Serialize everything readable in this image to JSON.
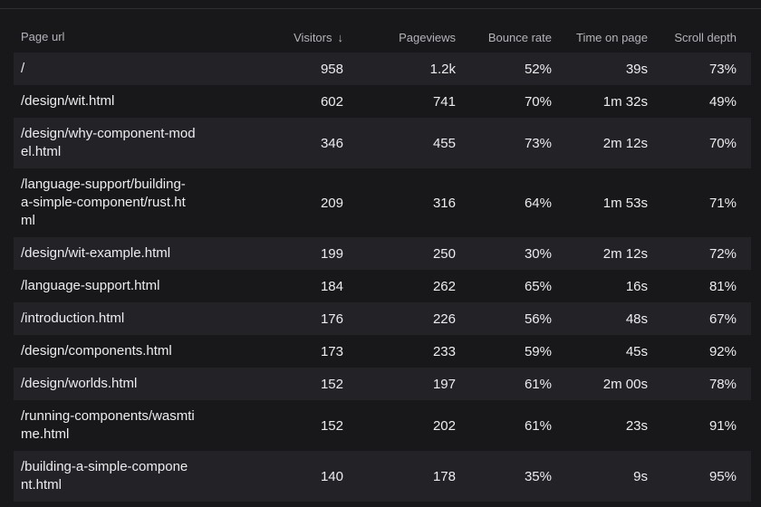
{
  "columns": {
    "page_url": "Page url",
    "visitors": "Visitors",
    "pageviews": "Pageviews",
    "bounce_rate": "Bounce rate",
    "time_on_page": "Time on page",
    "scroll_depth": "Scroll depth",
    "sort_icon": "↓"
  },
  "rows": [
    {
      "url_lines": [
        "/"
      ],
      "visitors": "958",
      "pageviews": "1.2k",
      "bounce": "52%",
      "time": "39s",
      "scroll": "73%"
    },
    {
      "url_lines": [
        "/design/wit.html"
      ],
      "visitors": "602",
      "pageviews": "741",
      "bounce": "70%",
      "time": "1m 32s",
      "scroll": "49%"
    },
    {
      "url_lines": [
        "/design/why-component-mod",
        "el.html"
      ],
      "visitors": "346",
      "pageviews": "455",
      "bounce": "73%",
      "time": "2m 12s",
      "scroll": "70%"
    },
    {
      "url_lines": [
        "/language-support/building-",
        "a-simple-component/rust.ht",
        "ml"
      ],
      "visitors": "209",
      "pageviews": "316",
      "bounce": "64%",
      "time": "1m 53s",
      "scroll": "71%"
    },
    {
      "url_lines": [
        "/design/wit-example.html"
      ],
      "visitors": "199",
      "pageviews": "250",
      "bounce": "30%",
      "time": "2m 12s",
      "scroll": "72%"
    },
    {
      "url_lines": [
        "/language-support.html"
      ],
      "visitors": "184",
      "pageviews": "262",
      "bounce": "65%",
      "time": "16s",
      "scroll": "81%"
    },
    {
      "url_lines": [
        "/introduction.html"
      ],
      "visitors": "176",
      "pageviews": "226",
      "bounce": "56%",
      "time": "48s",
      "scroll": "67%"
    },
    {
      "url_lines": [
        "/design/components.html"
      ],
      "visitors": "173",
      "pageviews": "233",
      "bounce": "59%",
      "time": "45s",
      "scroll": "92%"
    },
    {
      "url_lines": [
        "/design/worlds.html"
      ],
      "visitors": "152",
      "pageviews": "197",
      "bounce": "61%",
      "time": "2m 00s",
      "scroll": "78%"
    },
    {
      "url_lines": [
        "/running-components/wasmti",
        "me.html"
      ],
      "visitors": "152",
      "pageviews": "202",
      "bounce": "61%",
      "time": "23s",
      "scroll": "91%"
    },
    {
      "url_lines": [
        "/building-a-simple-compone",
        "nt.html"
      ],
      "visitors": "140",
      "pageviews": "178",
      "bounce": "35%",
      "time": "9s",
      "scroll": "95%"
    }
  ]
}
